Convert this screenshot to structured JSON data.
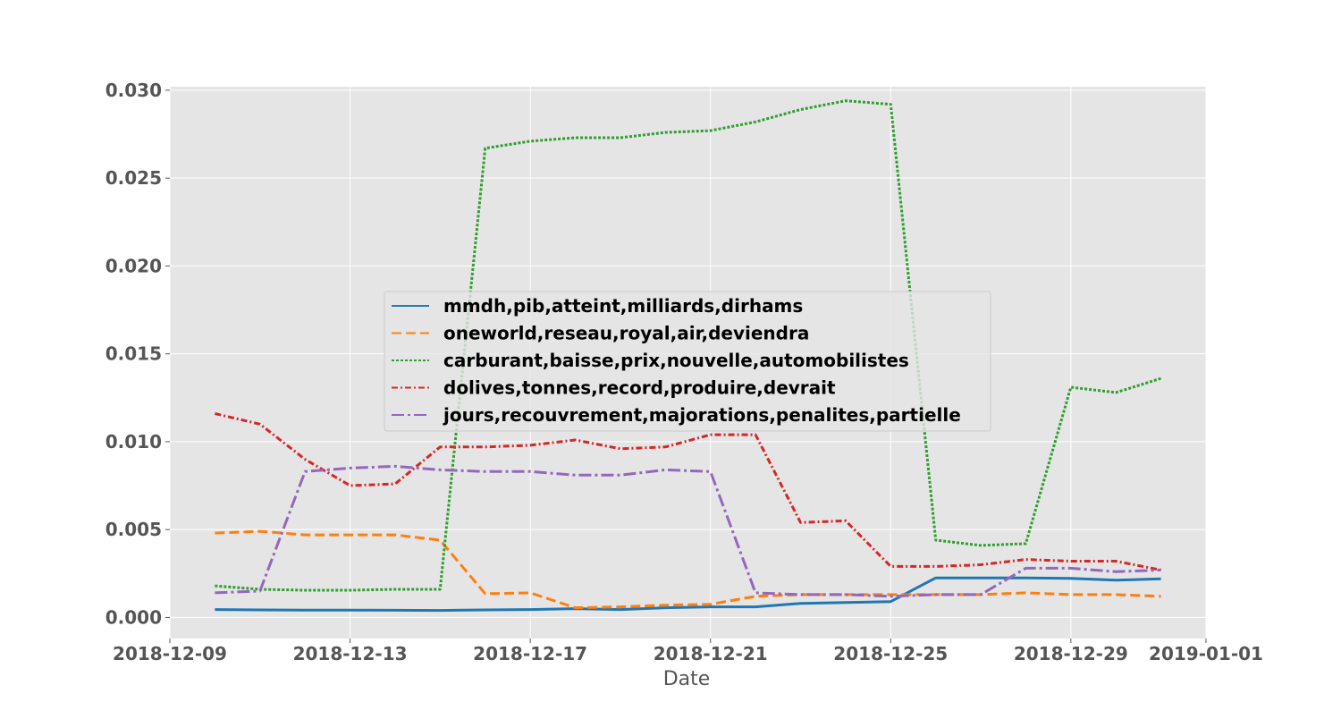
{
  "chart_data": {
    "type": "line",
    "title": "",
    "xlabel": "Date",
    "ylabel": "",
    "x": [
      "2018-12-10",
      "2018-12-11",
      "2018-12-12",
      "2018-12-13",
      "2018-12-14",
      "2018-12-15",
      "2018-12-16",
      "2018-12-17",
      "2018-12-18",
      "2018-12-19",
      "2018-12-20",
      "2018-12-21",
      "2018-12-22",
      "2018-12-23",
      "2018-12-24",
      "2018-12-25",
      "2018-12-26",
      "2018-12-27",
      "2018-12-28",
      "2018-12-29",
      "2018-12-30",
      "2018-12-31"
    ],
    "xlim": [
      "2018-12-09",
      "2019-01-01"
    ],
    "ylim": [
      -0.0012,
      0.0302
    ],
    "x_ticks": [
      "2018-12-09",
      "2018-12-13",
      "2018-12-17",
      "2018-12-21",
      "2018-12-25",
      "2018-12-29",
      "2019-01-01"
    ],
    "y_ticks": [
      "0.000",
      "0.005",
      "0.010",
      "0.015",
      "0.020",
      "0.025",
      "0.030"
    ],
    "grid": true,
    "legend_position": "center-left",
    "series": [
      {
        "name": "mmdh,pib,atteint,milliards,dirhams",
        "color": "#1f77b4",
        "style": "solid",
        "values": [
          0.00045,
          0.00043,
          0.00042,
          0.00042,
          0.00041,
          0.0004,
          0.00043,
          0.00045,
          0.0005,
          0.00045,
          0.00055,
          0.0006,
          0.0006,
          0.0008,
          0.00085,
          0.0009,
          0.00225,
          0.00225,
          0.00225,
          0.00222,
          0.00212,
          0.0022
        ]
      },
      {
        "name": "oneworld,reseau,royal,air,deviendra",
        "color": "#ff7f0e",
        "style": "dashed",
        "values": [
          0.0048,
          0.0049,
          0.0047,
          0.0047,
          0.0047,
          0.0044,
          0.00135,
          0.0014,
          0.00055,
          0.0006,
          0.0007,
          0.00075,
          0.0012,
          0.0013,
          0.0013,
          0.0013,
          0.0013,
          0.0013,
          0.0014,
          0.0013,
          0.0013,
          0.0012
        ]
      },
      {
        "name": "carburant,baisse,prix,nouvelle,automobilistes",
        "color": "#2ca02c",
        "style": "dotted",
        "values": [
          0.0018,
          0.0016,
          0.00155,
          0.00155,
          0.0016,
          0.0016,
          0.0267,
          0.0271,
          0.0273,
          0.0273,
          0.0276,
          0.0277,
          0.0282,
          0.0289,
          0.0294,
          0.0292,
          0.0044,
          0.0041,
          0.0042,
          0.0131,
          0.0128,
          0.0136
        ]
      },
      {
        "name": "dolives,tonnes,record,produire,devrait",
        "color": "#d62728",
        "style": "dashdot-short",
        "values": [
          0.0116,
          0.011,
          0.009,
          0.0075,
          0.0076,
          0.0097,
          0.0097,
          0.0098,
          0.0101,
          0.0096,
          0.0097,
          0.0104,
          0.0104,
          0.0054,
          0.0055,
          0.0029,
          0.0029,
          0.003,
          0.0033,
          0.0032,
          0.0032,
          0.0027
        ]
      },
      {
        "name": "jours,recouvrement,majorations,penalites,partielle",
        "color": "#9467bd",
        "style": "dashdot",
        "values": [
          0.0014,
          0.0015,
          0.0083,
          0.0085,
          0.0086,
          0.0084,
          0.0083,
          0.0083,
          0.0081,
          0.0081,
          0.0084,
          0.0083,
          0.0014,
          0.0013,
          0.0013,
          0.0012,
          0.0013,
          0.0013,
          0.0028,
          0.0028,
          0.0026,
          0.0027
        ]
      }
    ]
  }
}
